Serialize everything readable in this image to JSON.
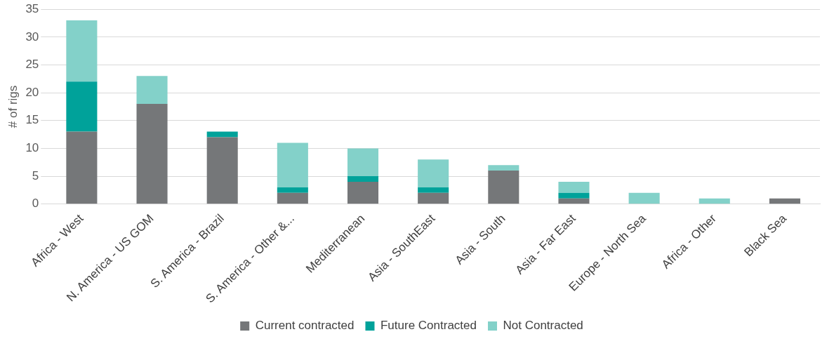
{
  "chart_data": {
    "type": "bar",
    "ylabel": "# of rigs",
    "stacked": true,
    "categories": [
      "Africa - West",
      "N. America - US GOM",
      "S. America - Brazil",
      "S. America - Other &...",
      "Mediterranean",
      "Asia - SouthEast",
      "Asia - South",
      "Asia - Far East",
      "Europe - North Sea",
      "Africa - Other",
      "Black Sea"
    ],
    "series": [
      {
        "name": "Current contracted",
        "color": "#757779",
        "values": [
          13,
          18,
          12,
          2,
          4,
          2,
          6,
          1,
          0,
          0,
          1
        ]
      },
      {
        "name": "Future Contracted",
        "color": "#00a29a",
        "values": [
          9,
          0,
          1,
          1,
          1,
          1,
          0,
          1,
          0,
          0,
          0
        ]
      },
      {
        "name": "Not Contracted",
        "color": "#83d1c9",
        "values": [
          11,
          5,
          0,
          8,
          5,
          5,
          1,
          2,
          2,
          1,
          0
        ]
      }
    ],
    "ylim": [
      0,
      35
    ],
    "yticks": [
      0,
      5,
      10,
      15,
      20,
      25,
      30,
      35
    ],
    "grid": "y",
    "legend": "bottom"
  }
}
